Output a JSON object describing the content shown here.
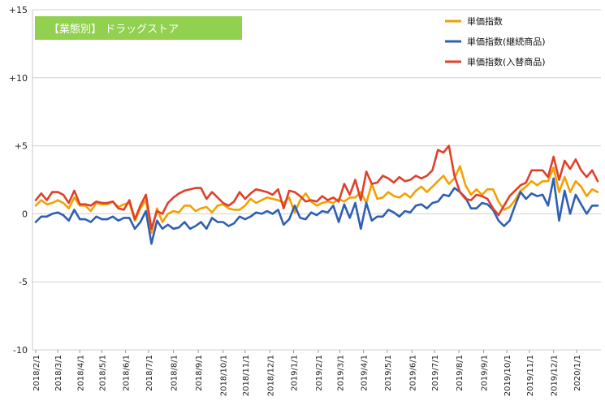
{
  "chart_data": {
    "type": "line",
    "title": "【業態別】 ドラッグストア",
    "colors": {
      "title_box": "#92d050",
      "grid": "#d0d0d0"
    },
    "ylim": [
      -10,
      15
    ],
    "y_ticks": [
      {
        "value": 15,
        "label": "+15"
      },
      {
        "value": 10,
        "label": "+10"
      },
      {
        "value": 5,
        "label": "+5"
      },
      {
        "value": 0,
        "label": "0"
      },
      {
        "value": -5,
        "label": "-5"
      },
      {
        "value": -10,
        "label": "-10"
      }
    ],
    "x_tick_labels": [
      "2018/2/1",
      "2018/3/1",
      "2018/4/1",
      "2018/5/1",
      "2018/6/1",
      "2018/7/1",
      "2018/8/1",
      "2018/9/1",
      "2018/10/1",
      "2018/11/1",
      "2018/12/1",
      "2019/1/1",
      "2019/2/1",
      "2019/3/1",
      "2019/4/1",
      "2019/5/1",
      "2019/6/1",
      "2019/7/1",
      "2019/8/1",
      "2019/9/1",
      "2019/10/1",
      "2019/11/1",
      "2019/12/1",
      "2020/1/1"
    ],
    "x_tick_positions": [
      0.0,
      4.0,
      8.0,
      12.0,
      16.3,
      20.5,
      25.0,
      29.5,
      34.0,
      38.0,
      42.5,
      46.8,
      51.3,
      55.2,
      59.5,
      63.8,
      68.3,
      72.4,
      76.8,
      81.3,
      85.5,
      89.6,
      94.0,
      98.2
    ],
    "legend_position": "top-right",
    "series": [
      {
        "name": "単価指数",
        "color": "#f5a000",
        "values": [
          0.6,
          1.0,
          0.7,
          0.8,
          1.0,
          0.8,
          0.4,
          1.2,
          0.6,
          0.6,
          0.2,
          0.8,
          0.7,
          0.7,
          0.9,
          0.5,
          0.7,
          0.8,
          -0.5,
          0.4,
          1.0,
          -1.4,
          0.4,
          -0.6,
          0.0,
          0.2,
          0.1,
          0.6,
          0.6,
          0.2,
          0.4,
          0.5,
          0.1,
          0.6,
          0.7,
          0.4,
          0.3,
          0.3,
          0.6,
          1.1,
          0.8,
          1.0,
          1.2,
          1.1,
          1.0,
          0.8,
          1.2,
          0.1,
          1.0,
          1.5,
          0.9,
          0.6,
          0.8,
          0.9,
          0.8,
          1.1,
          0.9,
          1.2,
          1.2,
          1.6,
          0.8,
          2.2,
          1.1,
          1.2,
          1.6,
          1.3,
          1.2,
          1.5,
          1.2,
          1.7,
          2.0,
          1.6,
          2.0,
          2.4,
          2.8,
          2.2,
          2.6,
          3.5,
          2.1,
          1.4,
          1.8,
          1.4,
          1.8,
          1.8,
          0.9,
          0.3,
          0.5,
          1.0,
          1.7,
          2.0,
          2.4,
          2.1,
          2.4,
          2.4,
          3.4,
          1.6,
          2.7,
          1.6,
          2.4,
          2.0,
          1.3,
          1.8,
          1.6
        ]
      },
      {
        "name": "単価指数(継続商品)",
        "color": "#2f5fb3",
        "values": [
          -0.6,
          -0.2,
          -0.2,
          0.0,
          0.1,
          -0.1,
          -0.5,
          0.3,
          -0.4,
          -0.4,
          -0.6,
          -0.2,
          -0.4,
          -0.4,
          -0.2,
          -0.5,
          -0.3,
          -0.3,
          -1.1,
          -0.6,
          0.2,
          -2.2,
          -0.5,
          -1.1,
          -0.8,
          -1.1,
          -1.0,
          -0.6,
          -1.1,
          -0.9,
          -0.6,
          -1.1,
          -0.3,
          -0.6,
          -0.6,
          -0.9,
          -0.7,
          -0.2,
          -0.4,
          -0.2,
          0.1,
          0.0,
          0.2,
          0.0,
          0.3,
          -0.8,
          -0.4,
          0.6,
          -0.3,
          -0.4,
          0.1,
          -0.1,
          0.2,
          0.1,
          0.6,
          -0.6,
          0.7,
          -0.3,
          0.8,
          -1.1,
          0.8,
          -0.5,
          -0.2,
          -0.2,
          0.3,
          0.1,
          -0.2,
          0.2,
          0.1,
          0.6,
          0.7,
          0.4,
          0.8,
          0.9,
          1.4,
          1.3,
          1.9,
          1.6,
          1.2,
          0.4,
          0.4,
          0.8,
          0.7,
          0.3,
          -0.5,
          -0.9,
          -0.5,
          0.6,
          1.6,
          1.1,
          1.5,
          1.3,
          1.4,
          0.6,
          2.6,
          -0.5,
          1.7,
          0.0,
          1.4,
          0.7,
          0.0,
          0.6,
          0.6
        ]
      },
      {
        "name": "単価指数(入替商品)",
        "color": "#e0402a",
        "values": [
          1.0,
          1.5,
          1.0,
          1.6,
          1.6,
          1.4,
          0.8,
          1.7,
          0.7,
          0.7,
          0.6,
          0.9,
          0.8,
          0.8,
          0.9,
          0.4,
          0.3,
          1.0,
          -0.4,
          0.6,
          1.4,
          -1.1,
          0.2,
          0.0,
          0.8,
          1.2,
          1.5,
          1.7,
          1.8,
          1.9,
          1.9,
          1.1,
          1.6,
          1.2,
          0.8,
          0.6,
          0.9,
          1.6,
          1.1,
          1.5,
          1.8,
          1.7,
          1.6,
          1.4,
          1.8,
          0.4,
          1.7,
          1.6,
          1.3,
          0.9,
          1.0,
          0.9,
          1.3,
          1.0,
          1.2,
          0.9,
          2.2,
          1.4,
          2.5,
          1.0,
          3.1,
          2.2,
          2.3,
          2.8,
          2.6,
          2.3,
          2.7,
          2.4,
          2.5,
          2.8,
          2.6,
          2.8,
          3.2,
          4.7,
          4.5,
          5.0,
          2.8,
          1.6,
          1.1,
          1.0,
          1.4,
          1.3,
          1.1,
          0.4,
          -0.1,
          0.6,
          1.3,
          1.7,
          2.1,
          2.3,
          3.2,
          3.2,
          3.2,
          2.7,
          4.2,
          2.5,
          3.9,
          3.3,
          4.0,
          3.2,
          2.7,
          3.2,
          2.4
        ]
      }
    ]
  }
}
